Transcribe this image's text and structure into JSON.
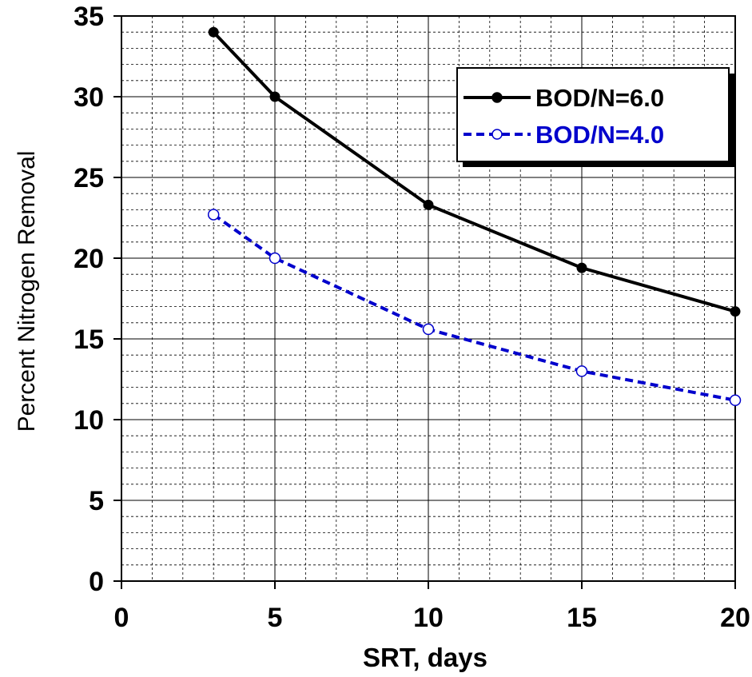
{
  "chart_data": {
    "type": "line",
    "xlabel": "SRT, days",
    "ylabel": "Percent Nitrogen Removal",
    "xlim": [
      0,
      20
    ],
    "ylim": [
      0,
      35
    ],
    "x_ticks": [
      "0",
      "5",
      "10",
      "15",
      "20"
    ],
    "y_ticks": [
      "0",
      "5",
      "10",
      "15",
      "20",
      "25",
      "30",
      "35"
    ],
    "grid": true,
    "legend_position": "top-right",
    "series": [
      {
        "name": "BOD/N=6.0",
        "x": [
          3,
          5,
          10,
          15,
          20
        ],
        "values": [
          34.0,
          30.0,
          23.3,
          19.4,
          16.7
        ],
        "color": "#000000",
        "line_style": "solid",
        "marker": "filled-circle"
      },
      {
        "name": "BOD/N=4.0",
        "x": [
          3,
          5,
          10,
          15,
          20
        ],
        "values": [
          22.7,
          20.0,
          15.6,
          13.0,
          11.2
        ],
        "color": "#0000cc",
        "line_style": "dashed",
        "marker": "open-circle"
      }
    ]
  }
}
